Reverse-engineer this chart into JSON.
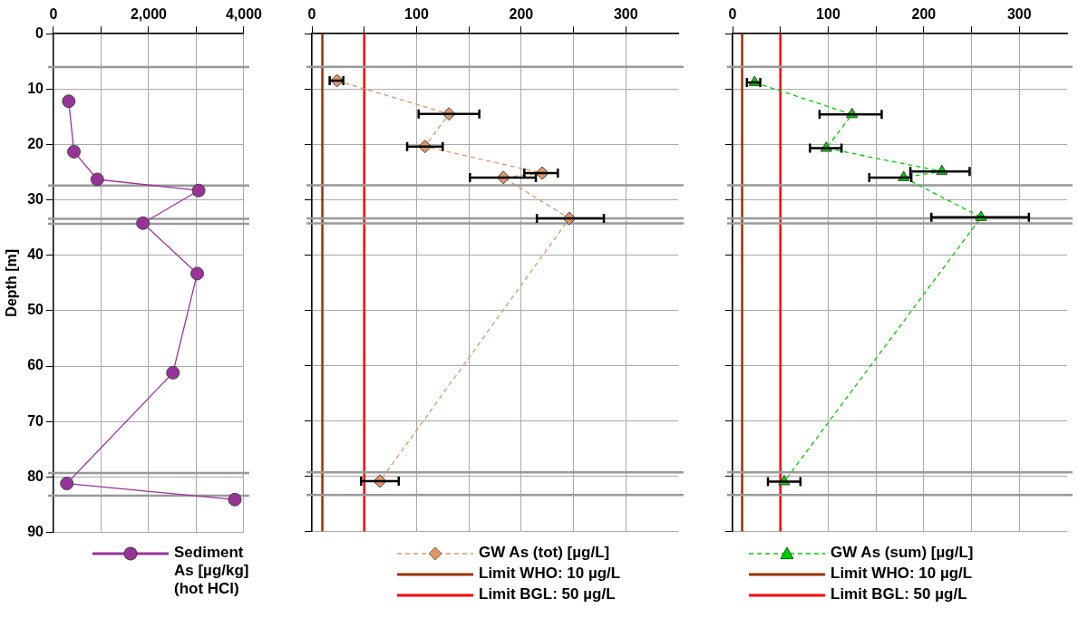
{
  "chart_data": [
    {
      "type": "line",
      "ylabel": "Depth [m]",
      "xlim": [
        0,
        4000
      ],
      "xticks": [
        0,
        {
          "value": 1000,
          "label": null
        },
        {
          "value": 2000,
          "label": "2,000"
        },
        {
          "value": 3000,
          "label": null
        },
        {
          "value": 4000,
          "label": "4,000"
        }
      ],
      "ylim": [
        90,
        0
      ],
      "yticks": [
        0,
        10,
        20,
        30,
        40,
        50,
        60,
        70,
        80,
        90
      ],
      "grid": true,
      "legend": "bottom",
      "series": [
        {
          "name": "Sediment As [µg/kg] (hot HCl)",
          "color": "#993399",
          "marker": "circle",
          "line_style": "solid",
          "x": [
            320,
            430,
            920,
            3050,
            1880,
            3020,
            2510,
            280,
            3810
          ],
          "values": [
            12.2,
            21.3,
            26.3,
            28.3,
            34.2,
            43.3,
            61.2,
            81.2,
            84.1
          ]
        }
      ],
      "ref_lines": [
        {
          "axis": "y",
          "value": 6,
          "color": "#999999"
        },
        {
          "axis": "y",
          "value": 27.4,
          "color": "#999999"
        },
        {
          "axis": "y",
          "value": 33.4,
          "color": "#999999"
        },
        {
          "axis": "y",
          "value": 34.3,
          "color": "#999999"
        },
        {
          "axis": "y",
          "value": 79.3,
          "color": "#999999"
        },
        {
          "axis": "y",
          "value": 83.4,
          "color": "#999999"
        }
      ]
    },
    {
      "type": "line",
      "xlim": [
        0,
        350
      ],
      "xticks": [
        0,
        {
          "value": 50,
          "label": null
        },
        100,
        {
          "value": 150,
          "label": null
        },
        200,
        {
          "value": 250,
          "label": null
        },
        300
      ],
      "ylim": [
        90,
        0
      ],
      "yticks": [
        0,
        10,
        20,
        30,
        40,
        50,
        60,
        70,
        80,
        90
      ],
      "grid": true,
      "legend": "bottom",
      "tick_labels": "x",
      "series": [
        {
          "name": "GW As (tot) [µg/L]",
          "color": "#e0966a",
          "marker": "diamond",
          "line_style": "dashed",
          "x": [
            24,
            131,
            108,
            220,
            183,
            246,
            65
          ],
          "values": [
            8.5,
            14.5,
            20.4,
            25.2,
            26.0,
            33.4,
            80.9
          ],
          "xerrors": [
            [
              17,
              30
            ],
            [
              102,
              160
            ],
            [
              91,
              125
            ],
            [
              203,
              235
            ],
            [
              151,
              214
            ],
            [
              215,
              279
            ],
            [
              47,
              83
            ]
          ]
        }
      ],
      "ref_lines": [
        {
          "axis": "x",
          "value": 10,
          "label": "Limit WHO: 10 µg/L",
          "color": "#993300"
        },
        {
          "axis": "x",
          "value": 50,
          "label": "Limit BGL:  50 µg/L",
          "color": "#ff0000"
        },
        {
          "axis": "y",
          "value": 6,
          "color": "#999999"
        },
        {
          "axis": "y",
          "value": 27.4,
          "color": "#999999"
        },
        {
          "axis": "y",
          "value": 33.4,
          "color": "#999999"
        },
        {
          "axis": "y",
          "value": 34.3,
          "color": "#999999"
        },
        {
          "axis": "y",
          "value": 79.3,
          "color": "#999999"
        },
        {
          "axis": "y",
          "value": 83.4,
          "color": "#999999"
        }
      ]
    },
    {
      "type": "line",
      "xlim": [
        0,
        350
      ],
      "xticks": [
        0,
        {
          "value": 50,
          "label": null
        },
        100,
        {
          "value": 150,
          "label": null
        },
        200,
        {
          "value": 250,
          "label": null
        },
        300
      ],
      "ylim": [
        90,
        0
      ],
      "yticks": [
        0,
        10,
        20,
        30,
        40,
        50,
        60,
        70,
        80,
        90
      ],
      "grid": true,
      "legend": "bottom",
      "tick_labels": "x",
      "series": [
        {
          "name": "GW  As (sum) [µg/L]",
          "color": "#00cc00",
          "marker": "triangle",
          "line_style": "dashed",
          "x": [
            23,
            125,
            98,
            219,
            179,
            260,
            54
          ],
          "values": [
            8.8,
            14.6,
            20.7,
            24.9,
            26.0,
            33.2,
            81.0
          ],
          "xerrors": [
            [
              15,
              29
            ],
            [
              91,
              156
            ],
            [
              81,
              114
            ],
            [
              186,
              248
            ],
            [
              143,
              187
            ],
            [
              208,
              310
            ],
            [
              37,
              71
            ]
          ]
        }
      ],
      "ref_lines": [
        {
          "axis": "x",
          "value": 10,
          "label": "Limit WHO: 10 µg/L",
          "color": "#993300"
        },
        {
          "axis": "x",
          "value": 50,
          "label": "Limit BGL:  50 µg/L",
          "color": "#ff0000"
        },
        {
          "axis": "y",
          "value": 6,
          "color": "#999999"
        },
        {
          "axis": "y",
          "value": 27.4,
          "color": "#999999"
        },
        {
          "axis": "y",
          "value": 33.4,
          "color": "#999999"
        },
        {
          "axis": "y",
          "value": 34.3,
          "color": "#999999"
        },
        {
          "axis": "y",
          "value": 79.3,
          "color": "#999999"
        },
        {
          "axis": "y",
          "value": 83.4,
          "color": "#999999"
        }
      ]
    }
  ]
}
